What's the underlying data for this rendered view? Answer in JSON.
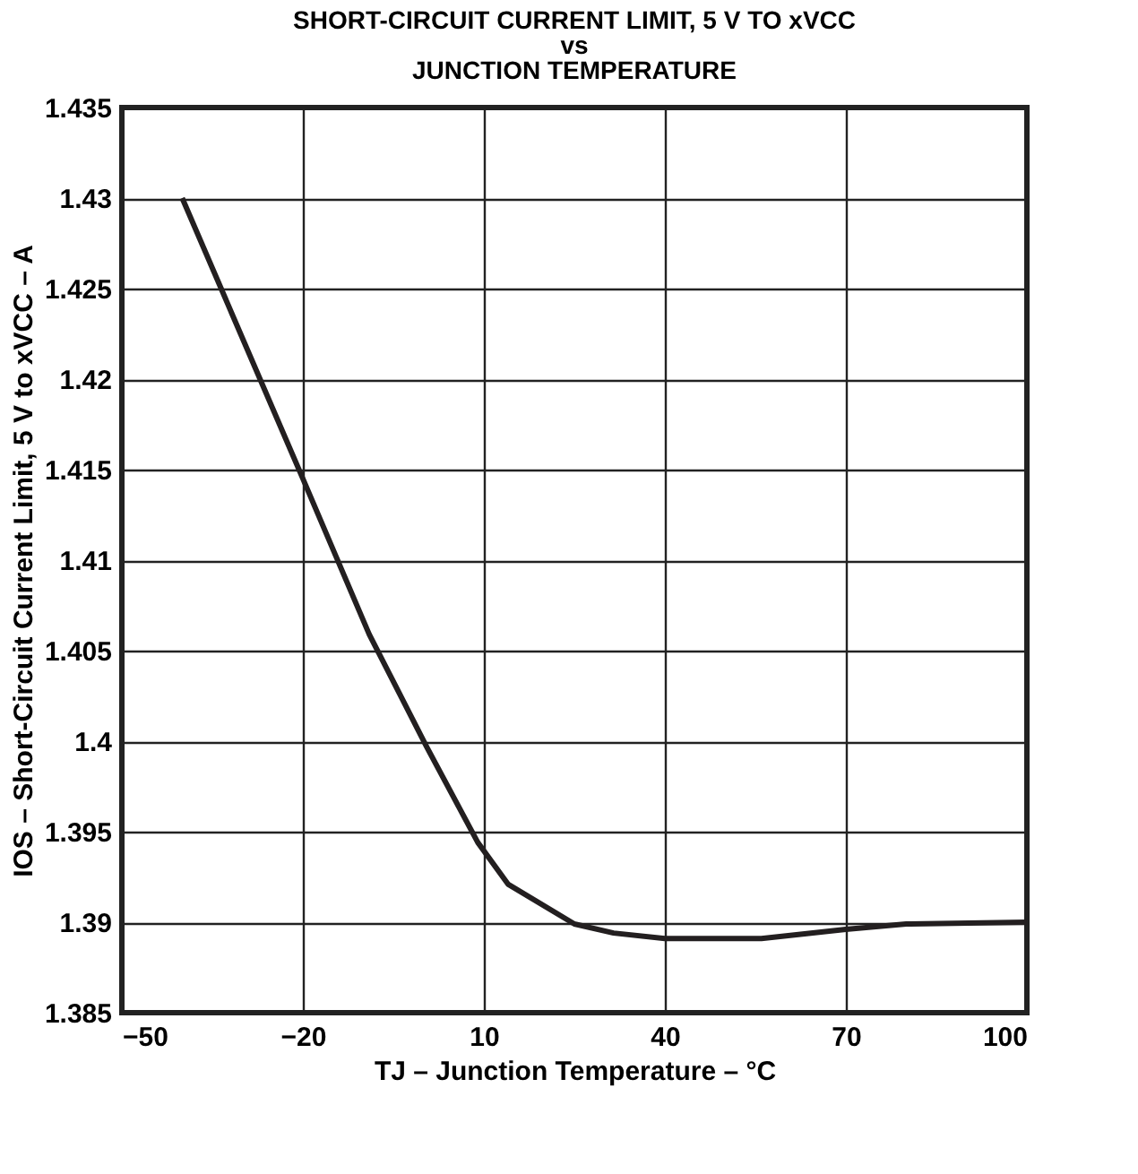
{
  "chart_data": {
    "type": "line",
    "title": [
      "SHORT-CIRCUIT CURRENT LIMIT, 5 V TO xVCC",
      "vs",
      "JUNCTION TEMPERATURE"
    ],
    "xlabel": "TJ – Junction Temperature – °C",
    "ylabel": "IOS – Short-Circuit Current Limit, 5 V to xVCC – A",
    "x": [
      -40,
      -20,
      -9,
      0.5,
      9,
      14,
      25,
      31.5,
      40,
      56,
      70,
      80,
      100
    ],
    "series": [
      {
        "color": "#231f20",
        "values": [
          1.43,
          1.4145,
          1.4059,
          1.3997,
          1.3944,
          1.3921,
          1.3899,
          1.3894,
          1.3891,
          1.3891,
          1.3896,
          1.3899,
          1.39
        ]
      }
    ],
    "xlim": [
      -50,
      100
    ],
    "xticks": [
      -50,
      -20,
      10,
      40,
      70,
      100
    ],
    "ylim": [
      1.385,
      1.435
    ],
    "yticks": [
      {
        "value": 1.385,
        "label": "1.385"
      },
      {
        "value": 1.39,
        "label": "1.39"
      },
      {
        "value": 1.395,
        "label": "1.395"
      },
      {
        "value": 1.4,
        "label": "1.4"
      },
      {
        "value": 1.405,
        "label": "1.405"
      },
      {
        "value": 1.41,
        "label": "1.41"
      },
      {
        "value": 1.415,
        "label": "1.415"
      },
      {
        "value": 1.42,
        "label": "1.42"
      },
      {
        "value": 1.425,
        "label": "1.425"
      },
      {
        "value": 1.43,
        "label": "1.43"
      },
      {
        "value": 1.435,
        "label": "1.435"
      }
    ],
    "grid": true,
    "legend": false,
    "marker": "none",
    "line_style": "solid"
  }
}
